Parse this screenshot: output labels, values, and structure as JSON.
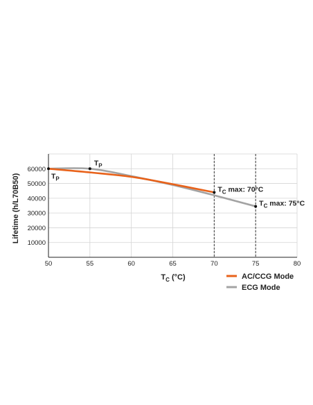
{
  "chart_data": {
    "type": "line",
    "title": "",
    "xlabel_main": "T",
    "xlabel_sub": "C",
    "xlabel_tail": " (°C)",
    "ylabel": "Lifetime (h/L70B50)",
    "xlim": [
      50,
      80
    ],
    "ylim": [
      0,
      70000
    ],
    "x_ticks": [
      50,
      55,
      60,
      65,
      70,
      75,
      80
    ],
    "y_ticks": [
      10000,
      20000,
      30000,
      40000,
      50000,
      60000
    ],
    "grid": true,
    "legend_position": "bottom-right",
    "series": [
      {
        "name": "AC/CCG Mode",
        "color": "#e8621a",
        "points": [
          [
            50,
            60000
          ],
          [
            55,
            57500
          ],
          [
            60,
            54500
          ],
          [
            65,
            49500
          ],
          [
            70,
            44000
          ]
        ]
      },
      {
        "name": "ECG Mode",
        "color": "#a3a3a3",
        "points": [
          [
            50,
            60000
          ],
          [
            55,
            60000
          ],
          [
            60,
            55000
          ],
          [
            65,
            49000
          ],
          [
            70,
            42000
          ],
          [
            75,
            34500
          ]
        ]
      }
    ],
    "markers": [
      {
        "x": 50,
        "y": 60000,
        "label_main": "T",
        "label_sub": "P",
        "label_tail": "",
        "placement": "below-right"
      },
      {
        "x": 55,
        "y": 60000,
        "label_main": "T",
        "label_sub": "P",
        "label_tail": "",
        "placement": "above-right"
      },
      {
        "x": 70,
        "y": 44000,
        "label_main": "T",
        "label_sub": "C",
        "label_tail": " max: 70°C",
        "placement": "right"
      },
      {
        "x": 75,
        "y": 34500,
        "label_main": "T",
        "label_sub": "C",
        "label_tail": " max: 75°C",
        "placement": "right"
      }
    ],
    "vlines": [
      70,
      75
    ],
    "colors": {
      "grid": "#d4d4d4",
      "axis": "#222222",
      "vline": "#333333",
      "marker": "#111111"
    }
  }
}
